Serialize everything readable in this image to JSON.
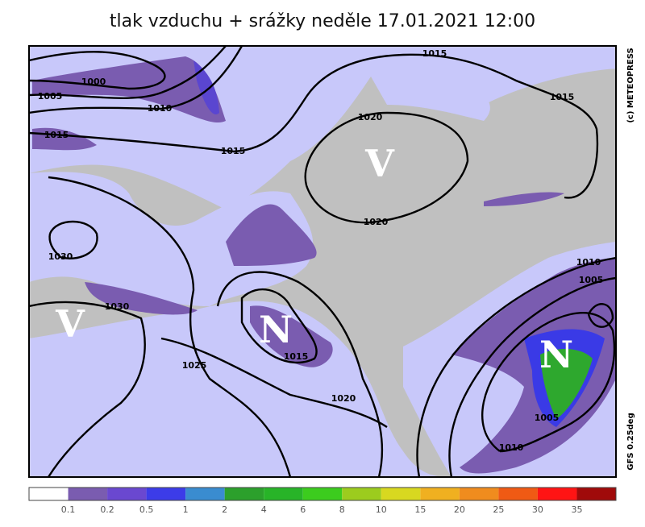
{
  "title": "tlak vzduchu + srážky  neděle 17.01.2021 12:00",
  "map": {
    "isobar_labels": [
      1015,
      1000,
      1005,
      1010,
      1015,
      1015,
      1015,
      1020,
      1020,
      1030,
      1030,
      1025,
      1015,
      1020,
      1010,
      1005,
      1005,
      1010
    ],
    "pressure_centers": [
      "V",
      "V",
      "N",
      "N"
    ],
    "copyright": "(c) METEOPRESS",
    "model": "GFS 0.25deg"
  },
  "colorbar": {
    "colors": [
      "#ffffff",
      "#7a5cb0",
      "#6a48d0",
      "#3c3ce8",
      "#3a8cd0",
      "#2ca02c",
      "#28b428",
      "#3ccc1e",
      "#9ccc1e",
      "#d8d820",
      "#f0b020",
      "#f08c1e",
      "#f05a14",
      "#ff1414",
      "#a00a0a"
    ],
    "labels": [
      0.1,
      0.2,
      0.5,
      1,
      2,
      4,
      6,
      8,
      10,
      15,
      20,
      25,
      30,
      35
    ]
  }
}
